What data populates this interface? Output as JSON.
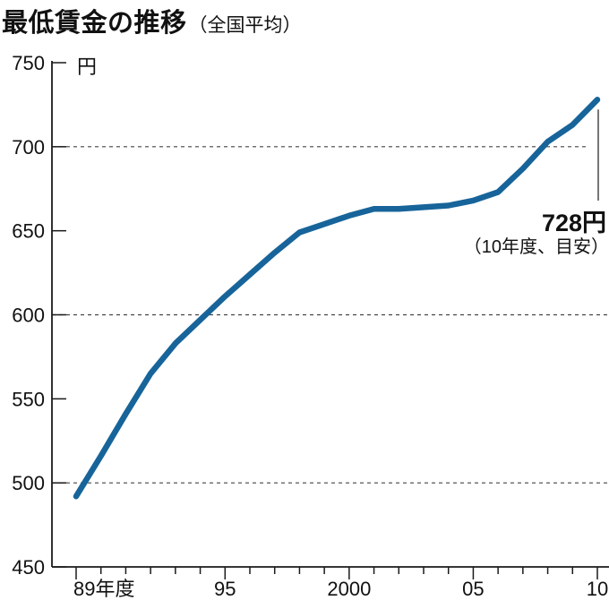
{
  "chart_data": {
    "type": "line",
    "title": "最低賃金の推移",
    "subtitle": "（全国平均）",
    "unit": "円",
    "years": [
      1989,
      1990,
      1991,
      1992,
      1993,
      1994,
      1995,
      1996,
      1997,
      1998,
      1999,
      2000,
      2001,
      2002,
      2003,
      2004,
      2005,
      2006,
      2007,
      2008,
      2009,
      2010
    ],
    "values": [
      492,
      516,
      541,
      565,
      583,
      597,
      611,
      624,
      637,
      649,
      654,
      659,
      663,
      663,
      664,
      665,
      668,
      673,
      687,
      703,
      713,
      728
    ],
    "ylim": [
      450,
      750
    ],
    "y_ticks": [
      750,
      700,
      650,
      600,
      550,
      500,
      450
    ],
    "dashed_gridlines": [
      700,
      600,
      500
    ],
    "x_axis_labels": [
      {
        "year": 1989,
        "label": "89年度"
      },
      {
        "year": 1995,
        "label": "95"
      },
      {
        "year": 2000,
        "label": "2000"
      },
      {
        "year": 2005,
        "label": "05"
      },
      {
        "year": 2010,
        "label": "10"
      }
    ],
    "annotation": {
      "label": "728円",
      "note": "（10年度、目安）",
      "target_year": 2010,
      "target_value": 728
    },
    "colors": {
      "line": "#17649a",
      "axis": "#1a1a1a",
      "grid": "#444444",
      "text": "#111111"
    }
  }
}
